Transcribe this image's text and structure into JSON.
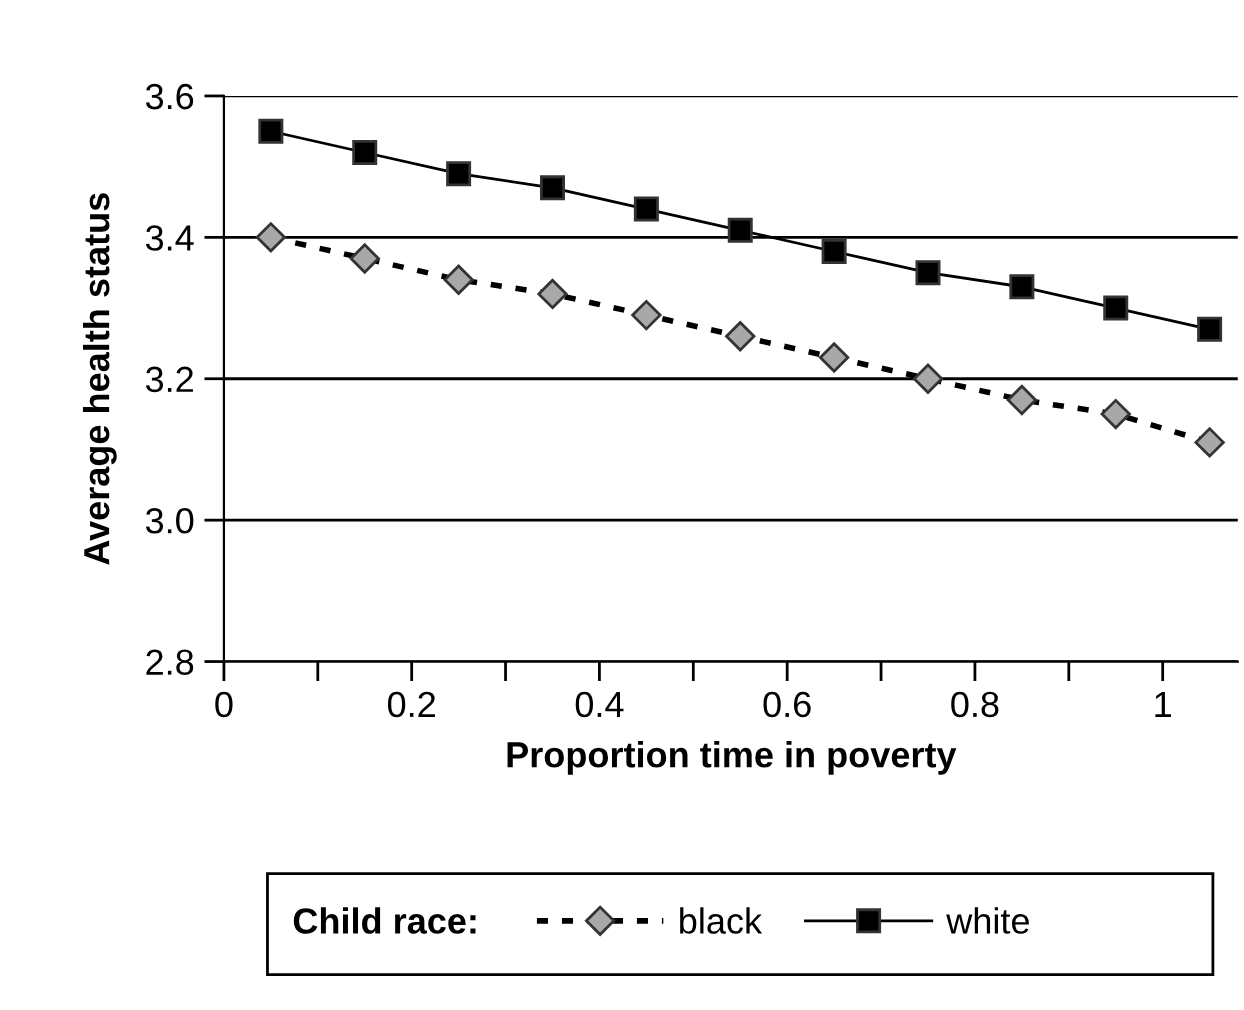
{
  "chart_data": {
    "type": "line",
    "xlabel": "Proportion time in poverty",
    "ylabel": "Average health status",
    "legend_title": "Child race:",
    "x": [
      0.05,
      0.15,
      0.25,
      0.35,
      0.45,
      0.55,
      0.65,
      0.75,
      0.85,
      0.95,
      1.05
    ],
    "series": [
      {
        "name": "black",
        "color": "#000000",
        "marker": "diamond",
        "line_style": "dotted",
        "values": [
          3.4,
          3.37,
          3.34,
          3.32,
          3.29,
          3.26,
          3.23,
          3.2,
          3.17,
          3.15,
          3.11
        ]
      },
      {
        "name": "white",
        "color": "#000000",
        "marker": "square",
        "line_style": "solid",
        "values": [
          3.55,
          3.52,
          3.49,
          3.47,
          3.44,
          3.41,
          3.38,
          3.35,
          3.33,
          3.3,
          3.27
        ]
      }
    ],
    "xlim": [
      0,
      1.08
    ],
    "xticks": [
      0,
      {
        "value": 0.1,
        "label": null
      },
      0.2,
      {
        "value": 0.3,
        "label": null
      },
      0.4,
      {
        "value": 0.5,
        "label": null
      },
      0.6,
      {
        "value": 0.7,
        "label": null
      },
      0.8,
      {
        "value": 0.9,
        "label": null
      },
      1
    ],
    "ylim": [
      2.8,
      3.6
    ],
    "yticks": [
      {
        "value": 2.8,
        "label": "2.8"
      },
      {
        "value": 3.0,
        "label": "3.0"
      },
      {
        "value": 3.2,
        "label": "3.2"
      },
      {
        "value": 3.4,
        "label": "3.4"
      },
      {
        "value": 3.6,
        "label": "3.6"
      }
    ],
    "grid": "y",
    "legend": "bottom"
  }
}
